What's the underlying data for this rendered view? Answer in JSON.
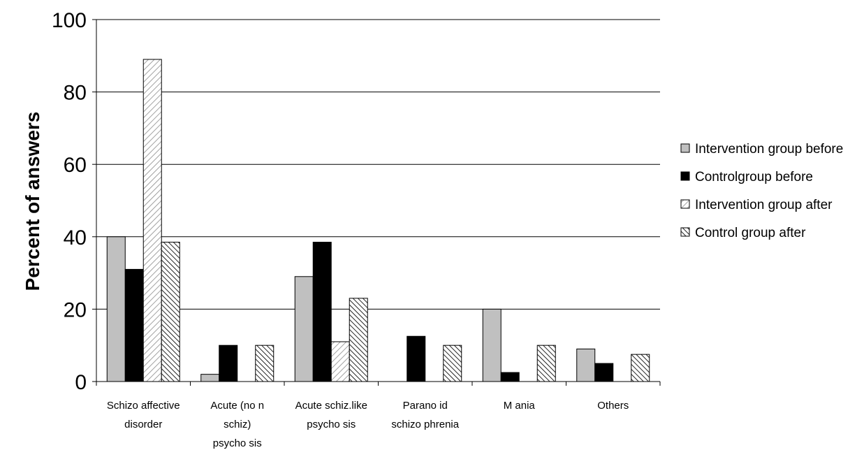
{
  "chart_data": {
    "type": "bar",
    "title": "",
    "xlabel": "",
    "ylabel": "Percent of answers",
    "ylim": [
      0,
      100
    ],
    "yticks": [
      0,
      20,
      40,
      60,
      80,
      100
    ],
    "grid": true,
    "legend_position": "right",
    "categories": [
      [
        "Schizo affective",
        "disorder"
      ],
      [
        "Acute (no n",
        "schiz)",
        "psycho sis"
      ],
      [
        "Acute schiz.like",
        "psycho sis"
      ],
      [
        "Parano id",
        "schizo phrenia"
      ],
      [
        "M ania"
      ],
      [
        "Others"
      ]
    ],
    "series": [
      {
        "name": "Intervention group before",
        "pattern": "solid-gray",
        "color": "#c0c0c0",
        "values": [
          40,
          2,
          29,
          null,
          20,
          9
        ]
      },
      {
        "name": "Controlgroup before",
        "pattern": "solid-black",
        "color": "#000000",
        "values": [
          31,
          10,
          38.5,
          12.5,
          2.5,
          5
        ]
      },
      {
        "name": "Intervention group after",
        "pattern": "light-diagonal",
        "color": "#ffffff",
        "values": [
          89,
          null,
          11,
          null,
          null,
          null
        ]
      },
      {
        "name": "Control group after",
        "pattern": "dark-diagonal",
        "color": "#ffffff",
        "values": [
          38.5,
          10,
          23,
          10,
          10,
          7.5
        ]
      }
    ]
  }
}
